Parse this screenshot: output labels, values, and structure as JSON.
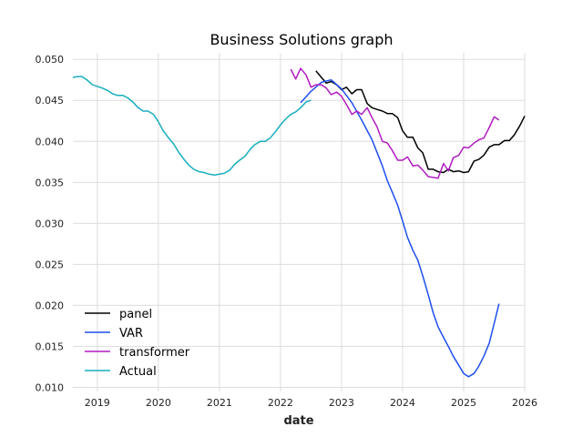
{
  "chart_data": {
    "type": "line",
    "title": "Business Solutions graph",
    "xlabel": "date",
    "ylabel": "",
    "xlim": [
      2018.6,
      2026.0
    ],
    "ylim": [
      0.0095,
      0.0508
    ],
    "grid": true,
    "legend_position": "lower-left",
    "x_ticks": [
      "2019",
      "2020",
      "2021",
      "2022",
      "2023",
      "2024",
      "2025",
      "2026"
    ],
    "y_ticks": [
      "0.010",
      "0.015",
      "0.020",
      "0.025",
      "0.030",
      "0.035",
      "0.040",
      "0.045",
      "0.050"
    ],
    "series": [
      {
        "name": "panel",
        "color": "#000000",
        "points": [
          [
            2022.58,
            0.0486
          ],
          [
            2022.67,
            0.0478
          ],
          [
            2022.75,
            0.0471
          ],
          [
            2022.83,
            0.0473
          ],
          [
            2022.92,
            0.0469
          ],
          [
            2023.0,
            0.0463
          ],
          [
            2023.08,
            0.0466
          ],
          [
            2023.17,
            0.0458
          ],
          [
            2023.25,
            0.0463
          ],
          [
            2023.33,
            0.0463
          ],
          [
            2023.42,
            0.0446
          ],
          [
            2023.5,
            0.0441
          ],
          [
            2023.58,
            0.0439
          ],
          [
            2023.67,
            0.0437
          ],
          [
            2023.75,
            0.0434
          ],
          [
            2023.83,
            0.0434
          ],
          [
            2023.92,
            0.0429
          ],
          [
            2024.0,
            0.0413
          ],
          [
            2024.08,
            0.0405
          ],
          [
            2024.17,
            0.0405
          ],
          [
            2024.25,
            0.0392
          ],
          [
            2024.33,
            0.0386
          ],
          [
            2024.42,
            0.0366
          ],
          [
            2024.5,
            0.0366
          ],
          [
            2024.58,
            0.0363
          ],
          [
            2024.67,
            0.0362
          ],
          [
            2024.75,
            0.0366
          ],
          [
            2024.83,
            0.0363
          ],
          [
            2024.92,
            0.0364
          ],
          [
            2025.0,
            0.0362
          ],
          [
            2025.08,
            0.0363
          ],
          [
            2025.17,
            0.0376
          ],
          [
            2025.25,
            0.0378
          ],
          [
            2025.33,
            0.0383
          ],
          [
            2025.42,
            0.0393
          ],
          [
            2025.5,
            0.0396
          ],
          [
            2025.58,
            0.0396
          ],
          [
            2025.67,
            0.0401
          ],
          [
            2025.75,
            0.0401
          ],
          [
            2025.83,
            0.0408
          ],
          [
            2025.92,
            0.0419
          ],
          [
            2026.0,
            0.0431
          ]
        ]
      },
      {
        "name": "VAR",
        "color": "#1f4ff0",
        "points": [
          [
            2022.33,
            0.0447
          ],
          [
            2022.5,
            0.0461
          ],
          [
            2022.67,
            0.0472
          ],
          [
            2022.83,
            0.0475
          ],
          [
            2023.0,
            0.0464
          ],
          [
            2023.17,
            0.0447
          ],
          [
            2023.33,
            0.0426
          ],
          [
            2023.5,
            0.0402
          ],
          [
            2023.67,
            0.037
          ],
          [
            2023.75,
            0.0352
          ],
          [
            2023.83,
            0.0338
          ],
          [
            2023.92,
            0.0322
          ],
          [
            2024.0,
            0.0303
          ],
          [
            2024.08,
            0.0283
          ],
          [
            2024.17,
            0.0267
          ],
          [
            2024.25,
            0.0255
          ],
          [
            2024.33,
            0.0236
          ],
          [
            2024.42,
            0.0213
          ],
          [
            2024.5,
            0.0191
          ],
          [
            2024.58,
            0.0174
          ],
          [
            2024.67,
            0.0161
          ],
          [
            2024.75,
            0.015
          ],
          [
            2024.83,
            0.0138
          ],
          [
            2024.92,
            0.0127
          ],
          [
            2025.0,
            0.0117
          ],
          [
            2025.08,
            0.0113
          ],
          [
            2025.17,
            0.0117
          ],
          [
            2025.25,
            0.0126
          ],
          [
            2025.33,
            0.0138
          ],
          [
            2025.42,
            0.0154
          ],
          [
            2025.5,
            0.0178
          ],
          [
            2025.58,
            0.0202
          ]
        ]
      },
      {
        "name": "transformer",
        "color": "#b01cc0",
        "points": [
          [
            2022.17,
            0.0488
          ],
          [
            2022.25,
            0.0476
          ],
          [
            2022.33,
            0.0489
          ],
          [
            2022.42,
            0.0481
          ],
          [
            2022.5,
            0.0466
          ],
          [
            2022.58,
            0.0469
          ],
          [
            2022.67,
            0.0469
          ],
          [
            2022.75,
            0.0465
          ],
          [
            2022.83,
            0.0457
          ],
          [
            2022.92,
            0.046
          ],
          [
            2023.0,
            0.0455
          ],
          [
            2023.08,
            0.0445
          ],
          [
            2023.17,
            0.0433
          ],
          [
            2023.25,
            0.0437
          ],
          [
            2023.33,
            0.0433
          ],
          [
            2023.42,
            0.0441
          ],
          [
            2023.5,
            0.0429
          ],
          [
            2023.58,
            0.0418
          ],
          [
            2023.67,
            0.04
          ],
          [
            2023.75,
            0.0398
          ],
          [
            2023.83,
            0.0389
          ],
          [
            2023.92,
            0.0377
          ],
          [
            2024.0,
            0.0377
          ],
          [
            2024.08,
            0.0381
          ],
          [
            2024.17,
            0.037
          ],
          [
            2024.25,
            0.0371
          ],
          [
            2024.33,
            0.0365
          ],
          [
            2024.42,
            0.0357
          ],
          [
            2024.5,
            0.0356
          ],
          [
            2024.58,
            0.0355
          ],
          [
            2024.67,
            0.0373
          ],
          [
            2024.75,
            0.0364
          ],
          [
            2024.83,
            0.038
          ],
          [
            2024.92,
            0.0383
          ],
          [
            2025.0,
            0.0393
          ],
          [
            2025.08,
            0.0392
          ],
          [
            2025.17,
            0.0398
          ],
          [
            2025.25,
            0.0402
          ],
          [
            2025.33,
            0.0404
          ],
          [
            2025.42,
            0.0417
          ],
          [
            2025.5,
            0.043
          ],
          [
            2025.58,
            0.0426
          ]
        ]
      },
      {
        "name": "Actual",
        "color": "#17aebd",
        "points": [
          [
            2018.6,
            0.0478
          ],
          [
            2018.67,
            0.0479
          ],
          [
            2018.75,
            0.0479
          ],
          [
            2018.83,
            0.0475
          ],
          [
            2018.92,
            0.0469
          ],
          [
            2019.0,
            0.0467
          ],
          [
            2019.08,
            0.0465
          ],
          [
            2019.17,
            0.0462
          ],
          [
            2019.25,
            0.0458
          ],
          [
            2019.33,
            0.0456
          ],
          [
            2019.42,
            0.0456
          ],
          [
            2019.5,
            0.0453
          ],
          [
            2019.58,
            0.0448
          ],
          [
            2019.67,
            0.0441
          ],
          [
            2019.75,
            0.0437
          ],
          [
            2019.83,
            0.0437
          ],
          [
            2019.92,
            0.0433
          ],
          [
            2020.0,
            0.0424
          ],
          [
            2020.08,
            0.0413
          ],
          [
            2020.17,
            0.0404
          ],
          [
            2020.25,
            0.0397
          ],
          [
            2020.33,
            0.0387
          ],
          [
            2020.42,
            0.0378
          ],
          [
            2020.5,
            0.0371
          ],
          [
            2020.58,
            0.0366
          ],
          [
            2020.67,
            0.0363
          ],
          [
            2020.75,
            0.0362
          ],
          [
            2020.83,
            0.036
          ],
          [
            2020.92,
            0.0359
          ],
          [
            2021.0,
            0.036
          ],
          [
            2021.08,
            0.0361
          ],
          [
            2021.17,
            0.0365
          ],
          [
            2021.25,
            0.0372
          ],
          [
            2021.33,
            0.0377
          ],
          [
            2021.42,
            0.0382
          ],
          [
            2021.5,
            0.039
          ],
          [
            2021.58,
            0.0396
          ],
          [
            2021.67,
            0.04
          ],
          [
            2021.75,
            0.04
          ],
          [
            2021.83,
            0.0404
          ],
          [
            2021.92,
            0.0412
          ],
          [
            2022.0,
            0.042
          ],
          [
            2022.08,
            0.0427
          ],
          [
            2022.17,
            0.0433
          ],
          [
            2022.25,
            0.0436
          ],
          [
            2022.33,
            0.0441
          ],
          [
            2022.42,
            0.0448
          ],
          [
            2022.5,
            0.045
          ]
        ]
      }
    ]
  }
}
